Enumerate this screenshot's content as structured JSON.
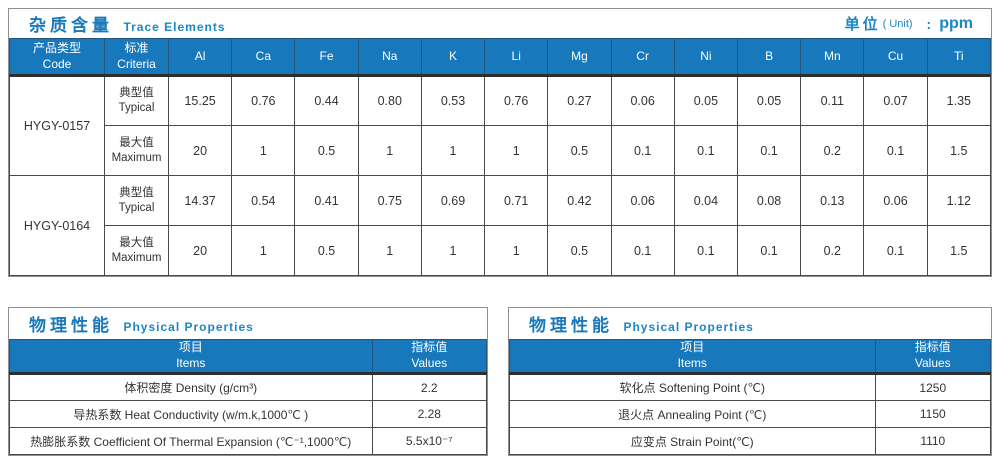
{
  "colors": {
    "header_blue": "#1878bc",
    "title_blue": "#1a79bb",
    "subtitle_blue": "#1b87c6",
    "body_text": "#333333",
    "cell_border": "#4a4a4a",
    "box_border": "#8f8f8f"
  },
  "trace_section": {
    "title_zh": "杂质含量",
    "title_en": "Trace Elements",
    "unit": {
      "zh": "单位",
      "en": "( Unit)",
      "colon": ":",
      "value": "ppm"
    },
    "code_header": {
      "zh": "产品类型",
      "en": "Code"
    },
    "criteria_header": {
      "zh": "标准",
      "en": "Criteria"
    },
    "elements": [
      "Al",
      "Ca",
      "Fe",
      "Na",
      "K",
      "Li",
      "Mg",
      "Cr",
      "Ni",
      "B",
      "Mn",
      "Cu",
      "Ti"
    ],
    "products": [
      {
        "code": "HYGY-0157",
        "rows": [
          {
            "criteria_zh": "典型值",
            "criteria_en": "Typical",
            "values": [
              "15.25",
              "0.76",
              "0.44",
              "0.80",
              "0.53",
              "0.76",
              "0.27",
              "0.06",
              "0.05",
              "0.05",
              "0.11",
              "0.07",
              "1.35"
            ]
          },
          {
            "criteria_zh": "最大值",
            "criteria_en": "Maximum",
            "values": [
              "20",
              "1",
              "0.5",
              "1",
              "1",
              "1",
              "0.5",
              "0.1",
              "0.1",
              "0.1",
              "0.2",
              "0.1",
              "1.5"
            ]
          }
        ]
      },
      {
        "code": "HYGY-0164",
        "rows": [
          {
            "criteria_zh": "典型值",
            "criteria_en": "Typical",
            "values": [
              "14.37",
              "0.54",
              "0.41",
              "0.75",
              "0.69",
              "0.71",
              "0.42",
              "0.06",
              "0.04",
              "0.08",
              "0.13",
              "0.06",
              "1.12"
            ]
          },
          {
            "criteria_zh": "最大值",
            "criteria_en": "Maximum",
            "values": [
              "20",
              "1",
              "0.5",
              "1",
              "1",
              "1",
              "0.5",
              "0.1",
              "0.1",
              "0.1",
              "0.2",
              "0.1",
              "1.5"
            ]
          }
        ]
      }
    ]
  },
  "physical_left": {
    "title_zh": "物理性能",
    "title_en": "Physical Properties",
    "col_item": {
      "zh": "项目",
      "en": "Items"
    },
    "col_value": {
      "zh": "指标值",
      "en": "Values"
    },
    "rows": [
      {
        "item": "体积密度 Density (g/cm³)",
        "value": "2.2"
      },
      {
        "item": "导热系数 Heat Conductivity (w/m.k,1000℃ )",
        "value": "2.28"
      },
      {
        "item": "热膨胀系数 Coefficient Of Thermal Expansion (℃⁻¹,1000℃)",
        "value": "5.5x10⁻⁷"
      }
    ]
  },
  "physical_right": {
    "title_zh": "物理性能",
    "title_en": "Physical Properties",
    "col_item": {
      "zh": "项目",
      "en": "Items"
    },
    "col_value": {
      "zh": "指标值",
      "en": "Values"
    },
    "rows": [
      {
        "item": "软化点 Softening Point (℃)",
        "value": "1250"
      },
      {
        "item": "退火点 Annealing Point (℃)",
        "value": "1150"
      },
      {
        "item": "应变点 Strain Point(℃)",
        "value": "1110"
      }
    ]
  }
}
